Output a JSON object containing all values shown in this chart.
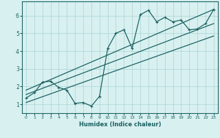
{
  "xlabel": "Humidex (Indice chaleur)",
  "ylabel": "",
  "bg_color": "#d8f0f0",
  "grid_color": "#b0d8d8",
  "line_color": "#1a6060",
  "xlim": [
    -0.5,
    23.5
  ],
  "ylim": [
    0.5,
    6.8
  ],
  "xticks": [
    0,
    1,
    2,
    3,
    4,
    5,
    6,
    7,
    8,
    9,
    10,
    11,
    12,
    13,
    14,
    15,
    16,
    17,
    18,
    19,
    20,
    21,
    22,
    23
  ],
  "yticks": [
    1,
    2,
    3,
    4,
    5,
    6
  ],
  "main_data_x": [
    0,
    1,
    2,
    3,
    4,
    5,
    6,
    7,
    8,
    9,
    10,
    11,
    12,
    13,
    14,
    15,
    16,
    17,
    18,
    19,
    20,
    21,
    22,
    23
  ],
  "main_data_y": [
    1.35,
    1.65,
    2.25,
    2.3,
    1.95,
    1.8,
    1.05,
    1.1,
    0.9,
    1.45,
    4.15,
    5.0,
    5.2,
    4.15,
    6.05,
    6.3,
    5.65,
    5.9,
    5.65,
    5.75,
    5.2,
    5.25,
    5.55,
    6.35
  ],
  "line1_x": [
    0,
    23
  ],
  "line1_y": [
    1.55,
    5.55
  ],
  "line2_x": [
    0,
    23
  ],
  "line2_y": [
    1.8,
    6.35
  ],
  "line3_x": [
    0,
    23
  ],
  "line3_y": [
    1.1,
    4.85
  ]
}
